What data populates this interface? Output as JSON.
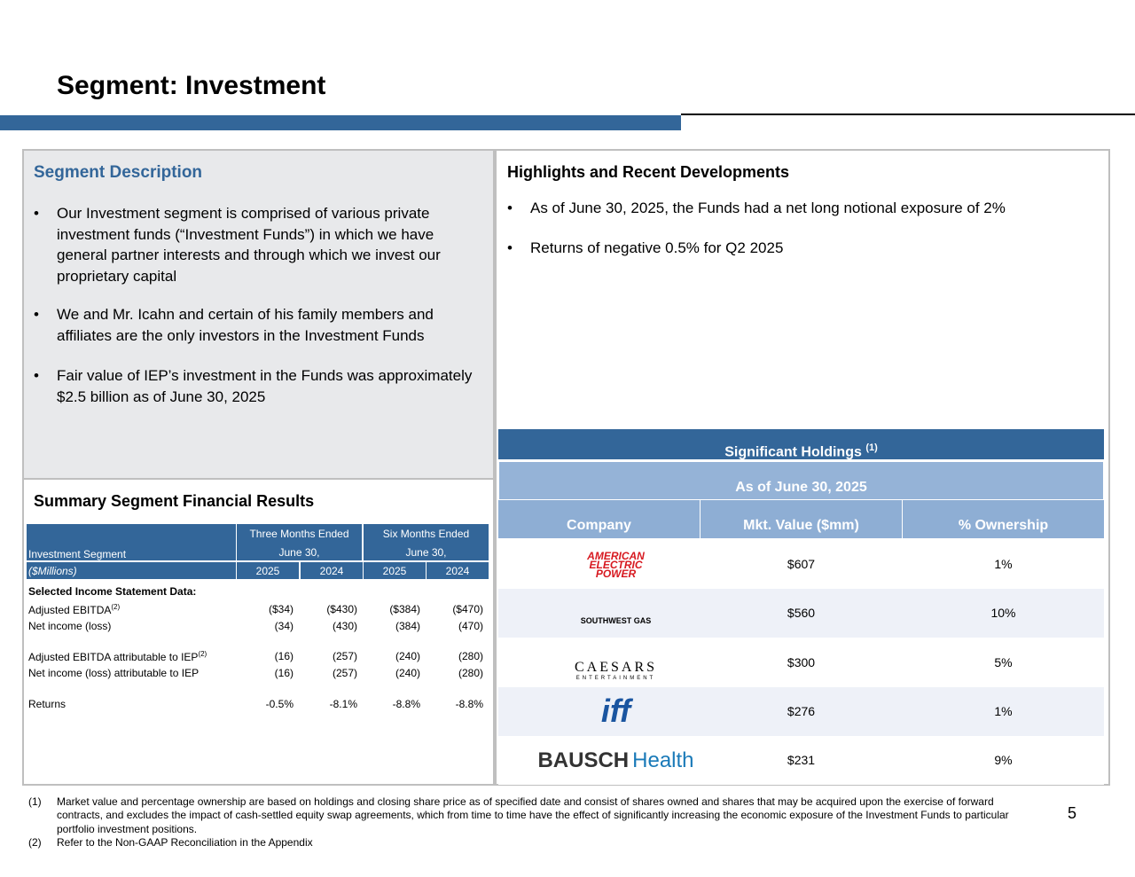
{
  "header": {
    "title": "Segment: Investment"
  },
  "description": {
    "heading": "Segment Description",
    "bullets": [
      "Our Investment segment is comprised of various private investment funds (“Investment Funds”) in which we have general partner interests and through which we invest our proprietary capital",
      "We and Mr. Icahn and certain of his family members and affiliates are the only investors in the Investment Funds",
      "Fair value of IEP’s investment in the Funds was approximately $2.5 billion as of June 30, 2025"
    ]
  },
  "highlights": {
    "heading": "Highlights and Recent Developments",
    "bullets": [
      "As of June 30, 2025, the Funds had a net long notional exposure of 2%",
      "Returns of negative 0.5% for Q2 2025"
    ]
  },
  "summary": {
    "heading": "Summary Segment Financial Results",
    "table": {
      "label_top": "Investment Segment",
      "label_bottom": "($Millions)",
      "groups": [
        {
          "line1": "Three Months Ended",
          "line2": "June 30,",
          "years": [
            "2025",
            "2024"
          ]
        },
        {
          "line1": "Six Months Ended",
          "line2": "June 30,",
          "years": [
            "2025",
            "2024"
          ]
        }
      ],
      "section": "Selected Income Statement Data:",
      "rows": [
        {
          "label": "Adjusted EBITDA",
          "note": "(2)",
          "values": [
            "($34)",
            "($430)",
            "($384)",
            "($470)"
          ]
        },
        {
          "label": "Net income (loss)",
          "values": [
            "(34)",
            "(430)",
            "(384)",
            "(470)"
          ]
        },
        {
          "label": "Adjusted EBITDA attributable to IEP",
          "note": "(2)",
          "values": [
            "(16)",
            "(257)",
            "(240)",
            "(280)"
          ]
        },
        {
          "label": "Net income (loss) attributable to IEP",
          "values": [
            "(16)",
            "(257)",
            "(240)",
            "(280)"
          ]
        },
        {
          "label": "Returns",
          "values": [
            "-0.5%",
            "-8.1%",
            "-8.8%",
            "-8.8%"
          ]
        }
      ]
    }
  },
  "holdings": {
    "title": "Significant Holdings",
    "note": "(1)",
    "subtitle": "As of June 30, 2025",
    "columns": [
      "Company",
      "Mkt. Value ($mm)",
      "% Ownership"
    ],
    "rows": [
      {
        "logo": [
          "AMERICAN",
          "ELECTRIC",
          "POWER"
        ],
        "value": "$607",
        "ownership": "1%"
      },
      {
        "logo": [
          "SOUTHWEST GAS"
        ],
        "value": "$560",
        "ownership": "10%"
      },
      {
        "logo": [
          "CAESARS",
          "ENTERTAINMENT"
        ],
        "value": "$300",
        "ownership": "5%"
      },
      {
        "logo": [
          "iff"
        ],
        "value": "$276",
        "ownership": "1%"
      },
      {
        "logo": [
          "BAUSCH",
          "Health"
        ],
        "value": "$231",
        "ownership": "9%"
      }
    ]
  },
  "footnotes": [
    {
      "marker": "(1)",
      "text": "Market value and percentage ownership are based on holdings and closing share price as of specified date and consist of shares owned and shares that may be acquired upon the exercise of forward contracts, and excludes the impact of cash-settled equity swap agreements, which from time to time have the effect of significantly increasing the economic exposure of the Investment Funds to particular portfolio investment positions."
    },
    {
      "marker": "(2)",
      "text": "Refer to the Non-GAAP Reconciliation in the Appendix"
    }
  ],
  "page_number": "5"
}
